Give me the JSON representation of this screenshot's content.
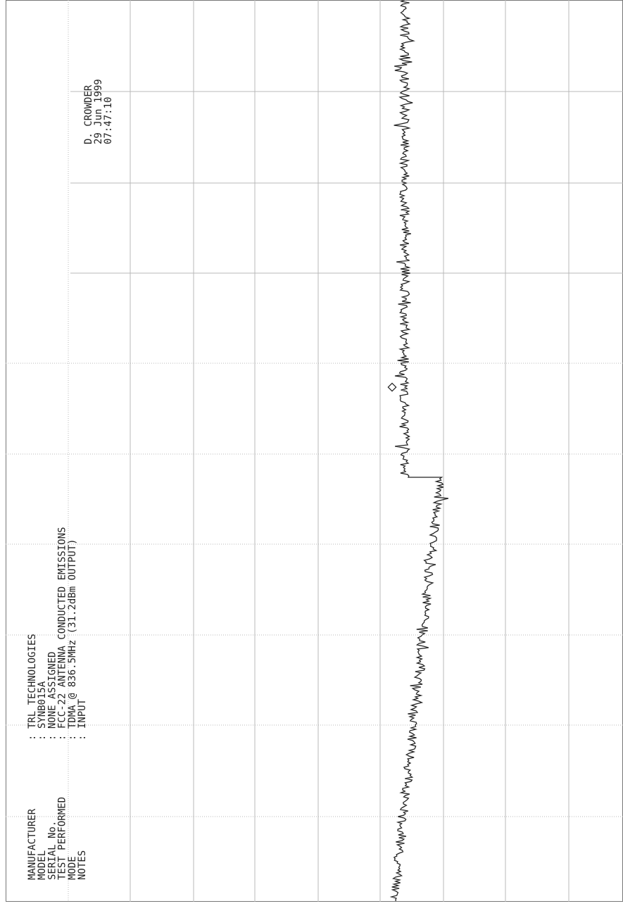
{
  "header": {
    "operator": "D. CROWDER",
    "date": "29 Jun 1999",
    "time": "07:47:10"
  },
  "fields": [
    {
      "label": "MANUFACTURER",
      "value": ": TRL TECHNOLOGIES"
    },
    {
      "label": "MODEL",
      "value": ": SYNB015A"
    },
    {
      "label": "SERIAL No.",
      "value": ": NONE ASSIGNED"
    },
    {
      "label": "TEST PERFORMED",
      "value": ": FCC-22 ANTENNA CONDUCTED EMISSIONS"
    },
    {
      "label": "MODE",
      "value": ": TDMA @ 836.5MHz (31.2dBm OUTPUT)"
    },
    {
      "label": "NOTES",
      "value": ": INPUT"
    }
  ]
}
